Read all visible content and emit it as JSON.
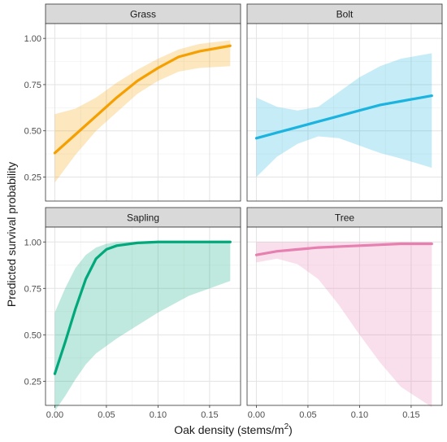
{
  "chart_data": {
    "type": "line",
    "layout": "facet 2x2",
    "xlabel": "Oak density (stems/m",
    "xlabel_sup": "2",
    "xlabel_end": ")",
    "ylabel": "Predicted survival probability",
    "xlim": [
      -0.009,
      0.18
    ],
    "ylim": [
      0.12,
      1.08
    ],
    "x_ticks": [
      0.0,
      0.05,
      0.1,
      0.15
    ],
    "x_tick_labels": [
      "0.00",
      "0.05",
      "0.10",
      "0.15"
    ],
    "y_ticks": [
      0.25,
      0.5,
      0.75,
      1.0
    ],
    "y_tick_labels": [
      "0.25",
      "0.50",
      "0.75",
      "1.00"
    ],
    "grid": true,
    "panels": [
      {
        "name": "Grass",
        "color": "#F5A000",
        "x": [
          0.0,
          0.02,
          0.04,
          0.06,
          0.08,
          0.1,
          0.12,
          0.14,
          0.17
        ],
        "y": [
          0.38,
          0.48,
          0.58,
          0.68,
          0.77,
          0.84,
          0.9,
          0.93,
          0.96
        ],
        "lower": [
          0.22,
          0.37,
          0.5,
          0.6,
          0.7,
          0.77,
          0.82,
          0.84,
          0.85
        ],
        "upper": [
          0.59,
          0.62,
          0.68,
          0.76,
          0.83,
          0.89,
          0.94,
          0.97,
          0.99
        ]
      },
      {
        "name": "Bolt",
        "color": "#1BB3E0",
        "x": [
          0.0,
          0.02,
          0.04,
          0.06,
          0.08,
          0.1,
          0.12,
          0.14,
          0.17
        ],
        "y": [
          0.46,
          0.49,
          0.52,
          0.55,
          0.58,
          0.61,
          0.64,
          0.66,
          0.69
        ],
        "lower": [
          0.25,
          0.36,
          0.43,
          0.47,
          0.46,
          0.42,
          0.38,
          0.35,
          0.3
        ],
        "upper": [
          0.68,
          0.63,
          0.61,
          0.63,
          0.71,
          0.79,
          0.85,
          0.89,
          0.92
        ]
      },
      {
        "name": "Sapling",
        "color": "#00A87B",
        "x": [
          0.0,
          0.01,
          0.02,
          0.03,
          0.04,
          0.05,
          0.06,
          0.08,
          0.1,
          0.13,
          0.17
        ],
        "y": [
          0.29,
          0.46,
          0.64,
          0.8,
          0.91,
          0.96,
          0.98,
          0.995,
          1.0,
          1.0,
          1.0
        ],
        "lower": [
          0.09,
          0.17,
          0.26,
          0.34,
          0.4,
          0.44,
          0.48,
          0.55,
          0.62,
          0.71,
          0.79
        ],
        "upper": [
          0.62,
          0.75,
          0.86,
          0.93,
          0.97,
          0.99,
          1.0,
          1.0,
          1.0,
          1.0,
          1.0
        ]
      },
      {
        "name": "Tree",
        "color": "#E680B0",
        "x": [
          0.0,
          0.02,
          0.04,
          0.06,
          0.08,
          0.1,
          0.12,
          0.14,
          0.17
        ],
        "y": [
          0.93,
          0.95,
          0.96,
          0.97,
          0.975,
          0.98,
          0.985,
          0.99,
          0.99
        ],
        "lower": [
          0.89,
          0.91,
          0.88,
          0.8,
          0.66,
          0.5,
          0.35,
          0.22,
          0.11
        ],
        "upper": [
          1.0,
          1.0,
          1.0,
          1.0,
          1.0,
          1.0,
          1.0,
          1.0,
          1.0
        ]
      }
    ]
  }
}
